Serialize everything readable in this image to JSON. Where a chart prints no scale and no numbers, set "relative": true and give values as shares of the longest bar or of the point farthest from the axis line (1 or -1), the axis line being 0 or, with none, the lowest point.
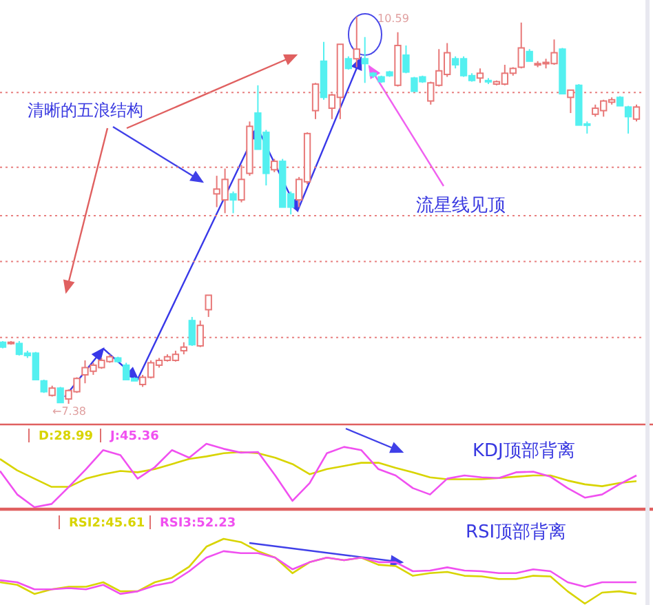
{
  "chart_data": [
    {
      "type": "candlestick",
      "categories": [
        null,
        null,
        null,
        null,
        null,
        null,
        null,
        null,
        null,
        null,
        null,
        null,
        null,
        null,
        null,
        null,
        null,
        null,
        null,
        null,
        null,
        null,
        null,
        null,
        null,
        null,
        null,
        null,
        null,
        null,
        null,
        null,
        null,
        null,
        null,
        null,
        null,
        null,
        null,
        null,
        null,
        null,
        null,
        null,
        null,
        null,
        null,
        null,
        null,
        null,
        null,
        null,
        null,
        null,
        null,
        null,
        null,
        null,
        null,
        null,
        null,
        null,
        null,
        null,
        null,
        null,
        null,
        null,
        null,
        null,
        null,
        null,
        null,
        null,
        null,
        null,
        null,
        null
      ],
      "ohlc": [
        [
          7.89,
          7.9,
          7.84,
          7.85
        ],
        [
          7.88,
          7.9,
          7.87,
          7.89
        ],
        [
          7.88,
          7.9,
          7.78,
          7.79
        ],
        [
          7.8,
          7.82,
          7.76,
          7.78
        ],
        [
          7.8,
          7.81,
          7.58,
          7.58
        ],
        [
          7.57,
          7.58,
          7.47,
          7.48
        ],
        [
          7.45,
          7.53,
          7.44,
          7.51
        ],
        [
          7.51,
          7.52,
          7.39,
          7.39
        ],
        [
          7.42,
          7.5,
          7.38,
          7.49
        ],
        [
          7.48,
          7.6,
          7.47,
          7.59
        ],
        [
          7.62,
          7.74,
          7.55,
          7.68
        ],
        [
          7.65,
          7.72,
          7.62,
          7.7
        ],
        [
          7.68,
          7.76,
          7.67,
          7.74
        ],
        [
          7.73,
          7.79,
          7.72,
          7.77
        ],
        [
          7.76,
          7.77,
          7.72,
          7.73
        ],
        [
          7.7,
          7.72,
          7.58,
          7.58
        ],
        [
          7.59,
          7.6,
          7.57,
          7.57
        ],
        [
          7.54,
          7.62,
          7.52,
          7.6
        ],
        [
          7.6,
          7.74,
          7.59,
          7.72
        ],
        [
          7.7,
          7.76,
          7.68,
          7.74
        ],
        [
          7.74,
          7.79,
          7.73,
          7.77
        ],
        [
          7.74,
          7.82,
          7.73,
          7.79
        ],
        [
          7.82,
          7.89,
          7.79,
          7.85
        ],
        [
          8.07,
          8.1,
          7.86,
          7.87
        ],
        [
          7.86,
          8.07,
          7.85,
          8.03
        ],
        [
          8.16,
          8.28,
          8.1,
          8.28
        ],
        [
          9.12,
          9.27,
          9.01,
          9.16
        ],
        [
          9.07,
          9.33,
          8.96,
          9.24
        ],
        [
          9.12,
          9.14,
          8.96,
          9.07
        ],
        [
          9.07,
          9.36,
          9.05,
          9.24
        ],
        [
          9.29,
          9.72,
          9.27,
          9.68
        ],
        [
          9.79,
          10.02,
          9.49,
          9.49
        ],
        [
          9.63,
          9.65,
          9.19,
          9.29
        ],
        [
          9.32,
          9.41,
          9.3,
          9.39
        ],
        [
          9.39,
          9.41,
          9.01,
          9.01
        ],
        [
          9.12,
          9.14,
          8.95,
          9.01
        ],
        [
          9.07,
          9.26,
          9.01,
          9.24
        ],
        [
          9.22,
          9.63,
          9.2,
          9.62
        ],
        [
          9.81,
          10.04,
          9.74,
          10.03
        ],
        [
          10.22,
          10.38,
          9.9,
          9.92
        ],
        [
          9.83,
          9.95,
          9.74,
          9.94
        ],
        [
          9.92,
          10.36,
          9.74,
          10.36
        ],
        [
          10.24,
          10.26,
          10.15,
          10.16
        ],
        [
          10.24,
          10.59,
          10.17,
          10.32
        ],
        [
          10.24,
          10.42,
          10.04,
          10.2
        ],
        [
          10.12,
          10.13,
          10.08,
          10.1
        ],
        [
          10.09,
          10.1,
          10.04,
          10.05
        ],
        [
          10.13,
          10.14,
          10.09,
          10.1
        ],
        [
          10.02,
          10.46,
          10.01,
          10.35
        ],
        [
          10.27,
          10.35,
          10.12,
          10.13
        ],
        [
          10.08,
          10.09,
          9.97,
          9.97
        ],
        [
          10.09,
          10.1,
          10.04,
          10.05
        ],
        [
          9.89,
          10.05,
          9.86,
          10.04
        ],
        [
          10.02,
          10.32,
          10.01,
          10.14
        ],
        [
          10.11,
          10.37,
          10.09,
          10.29
        ],
        [
          10.24,
          10.26,
          10.16,
          10.19
        ],
        [
          10.24,
          10.26,
          10.09,
          10.1
        ],
        [
          10.1,
          10.12,
          10.05,
          10.06
        ],
        [
          10.08,
          10.16,
          10.04,
          10.12
        ],
        [
          10.06,
          10.08,
          10.03,
          10.05
        ],
        [
          10.03,
          10.06,
          10.02,
          10.05
        ],
        [
          10.03,
          10.19,
          10.02,
          10.12
        ],
        [
          10.12,
          10.17,
          10.1,
          10.16
        ],
        [
          10.17,
          10.54,
          10.16,
          10.33
        ],
        [
          10.3,
          10.32,
          10.22,
          10.22
        ],
        [
          10.19,
          10.22,
          10.17,
          10.2
        ],
        [
          10.2,
          10.24,
          10.16,
          10.21
        ],
        [
          10.2,
          10.4,
          10.19,
          10.29
        ],
        [
          10.32,
          10.33,
          9.95,
          9.95
        ],
        [
          9.92,
          9.98,
          9.79,
          9.98
        ],
        [
          10.02,
          10.03,
          9.69,
          9.69
        ],
        [
          9.7,
          9.72,
          9.62,
          9.69
        ],
        [
          9.78,
          9.86,
          9.76,
          9.83
        ],
        [
          9.81,
          9.9,
          9.76,
          9.89
        ],
        [
          9.88,
          9.92,
          9.86,
          9.9
        ],
        [
          9.92,
          9.93,
          9.85,
          9.85
        ],
        [
          9.84,
          9.85,
          9.62,
          9.76
        ],
        [
          9.74,
          9.86,
          9.72,
          9.84
        ]
      ],
      "colors": [
        "#54f0f0",
        "#e87878",
        "#54f0f0",
        "#54f0f0",
        "#54f0f0",
        "#54f0f0",
        "#e87878",
        "#54f0f0",
        "#e87878",
        "#e87878",
        "#e87878",
        "#e87878",
        "#e87878",
        "#e87878",
        "#54f0f0",
        "#54f0f0",
        "#54f0f0",
        "#e87878",
        "#e87878",
        "#e87878",
        "#e87878",
        "#e87878",
        "#e87878",
        "#54f0f0",
        "#e87878",
        "#e87878",
        "#e87878",
        "#e87878",
        "#54f0f0",
        "#e87878",
        "#e87878",
        "#54f0f0",
        "#54f0f0",
        "#e87878",
        "#54f0f0",
        "#54f0f0",
        "#e87878",
        "#e87878",
        "#e87878",
        "#54f0f0",
        "#e87878",
        "#e87878",
        "#54f0f0",
        "#e87878",
        "#54f0f0",
        "#54f0f0",
        "#54f0f0",
        "#54f0f0",
        "#e87878",
        "#54f0f0",
        "#54f0f0",
        "#54f0f0",
        "#e87878",
        "#e87878",
        "#e87878",
        "#54f0f0",
        "#54f0f0",
        "#54f0f0",
        "#e87878",
        "#54f0f0",
        "#e87878",
        "#e87878",
        "#e87878",
        "#e87878",
        "#54f0f0",
        "#e87878",
        "#e87878",
        "#e87878",
        "#54f0f0",
        "#e87878",
        "#54f0f0",
        "#54f0f0",
        "#e87878",
        "#e87878",
        "#e87878",
        "#54f0f0",
        "#54f0f0",
        "#e87878"
      ],
      "grid": true,
      "yticks": [
        {
          "value": 9.96,
          "label": null
        },
        {
          "value": 9.34,
          "label": null
        },
        {
          "value": 8.94,
          "label": null
        },
        {
          "value": 8.56,
          "label": null
        },
        {
          "value": 7.93,
          "label": null
        }
      ],
      "annotations": [
        "清晰的五浪结构",
        "流星线见顶",
        "10.59",
        "←7.38"
      ]
    },
    {
      "type": "line",
      "relative": true,
      "legend": "top left",
      "categories": [
        null,
        null,
        null,
        null,
        null,
        null,
        null,
        null,
        null,
        null,
        null,
        null,
        null,
        null,
        null,
        null,
        null,
        null,
        null,
        null,
        null,
        null,
        null,
        null,
        null,
        null,
        null,
        null,
        null,
        null,
        null,
        null,
        null,
        null,
        null,
        null,
        null,
        null
      ],
      "series": [
        {
          "name": "D:28.99",
          "color": "#d8d400",
          "values": [
            0.76,
            0.58,
            0.45,
            0.32,
            0.32,
            0.45,
            0.52,
            0.57,
            0.55,
            0.6,
            0.68,
            0.76,
            0.8,
            0.85,
            0.87,
            0.85,
            0.78,
            0.68,
            0.52,
            0.6,
            0.65,
            0.7,
            0.7,
            0.62,
            0.55,
            0.47,
            0.44,
            0.44,
            0.44,
            0.46,
            0.48,
            0.5,
            0.5,
            0.42,
            0.36,
            0.33,
            0.38,
            0.41
          ]
        },
        {
          "name": "J:45.36",
          "color": "#f050f0",
          "values": [
            0.57,
            0.2,
            0.0,
            0.05,
            0.32,
            0.6,
            0.9,
            0.82,
            0.45,
            0.63,
            0.9,
            0.78,
            1.0,
            0.92,
            0.86,
            0.87,
            0.5,
            0.1,
            0.38,
            0.85,
            0.95,
            0.9,
            0.6,
            0.5,
            0.3,
            0.2,
            0.45,
            0.5,
            0.47,
            0.46,
            0.55,
            0.56,
            0.48,
            0.3,
            0.15,
            0.2,
            0.36,
            0.5
          ]
        }
      ],
      "annotations": [
        "KDJ顶部背离"
      ]
    },
    {
      "type": "line",
      "relative": true,
      "legend": "top left",
      "categories": [
        null,
        null,
        null,
        null,
        null,
        null,
        null,
        null,
        null,
        null,
        null,
        null,
        null,
        null,
        null,
        null,
        null,
        null,
        null,
        null,
        null,
        null,
        null,
        null,
        null,
        null,
        null,
        null,
        null,
        null,
        null,
        null,
        null,
        null,
        null,
        null,
        null,
        null
      ],
      "series": [
        {
          "name": "RSI2:45.61",
          "color": "#d8d400",
          "values": [
            0.33,
            0.29,
            0.15,
            0.22,
            0.26,
            0.26,
            0.33,
            0.19,
            0.19,
            0.33,
            0.4,
            0.57,
            0.88,
            1.0,
            0.95,
            0.81,
            0.71,
            0.47,
            0.64,
            0.71,
            0.67,
            0.71,
            0.6,
            0.58,
            0.43,
            0.47,
            0.49,
            0.43,
            0.42,
            0.38,
            0.38,
            0.43,
            0.42,
            0.19,
            0.0,
            0.17,
            0.19,
            0.15
          ]
        },
        {
          "name": "RSI3:52.23",
          "color": "#f050f0",
          "values": [
            0.36,
            0.33,
            0.22,
            0.22,
            0.24,
            0.22,
            0.29,
            0.15,
            0.19,
            0.28,
            0.33,
            0.5,
            0.71,
            0.81,
            0.78,
            0.78,
            0.71,
            0.53,
            0.64,
            0.71,
            0.67,
            0.71,
            0.64,
            0.64,
            0.5,
            0.51,
            0.56,
            0.51,
            0.5,
            0.47,
            0.47,
            0.53,
            0.5,
            0.33,
            0.26,
            0.33,
            0.33,
            0.33
          ]
        }
      ],
      "annotations": [
        "RSI顶部背离"
      ]
    }
  ]
}
